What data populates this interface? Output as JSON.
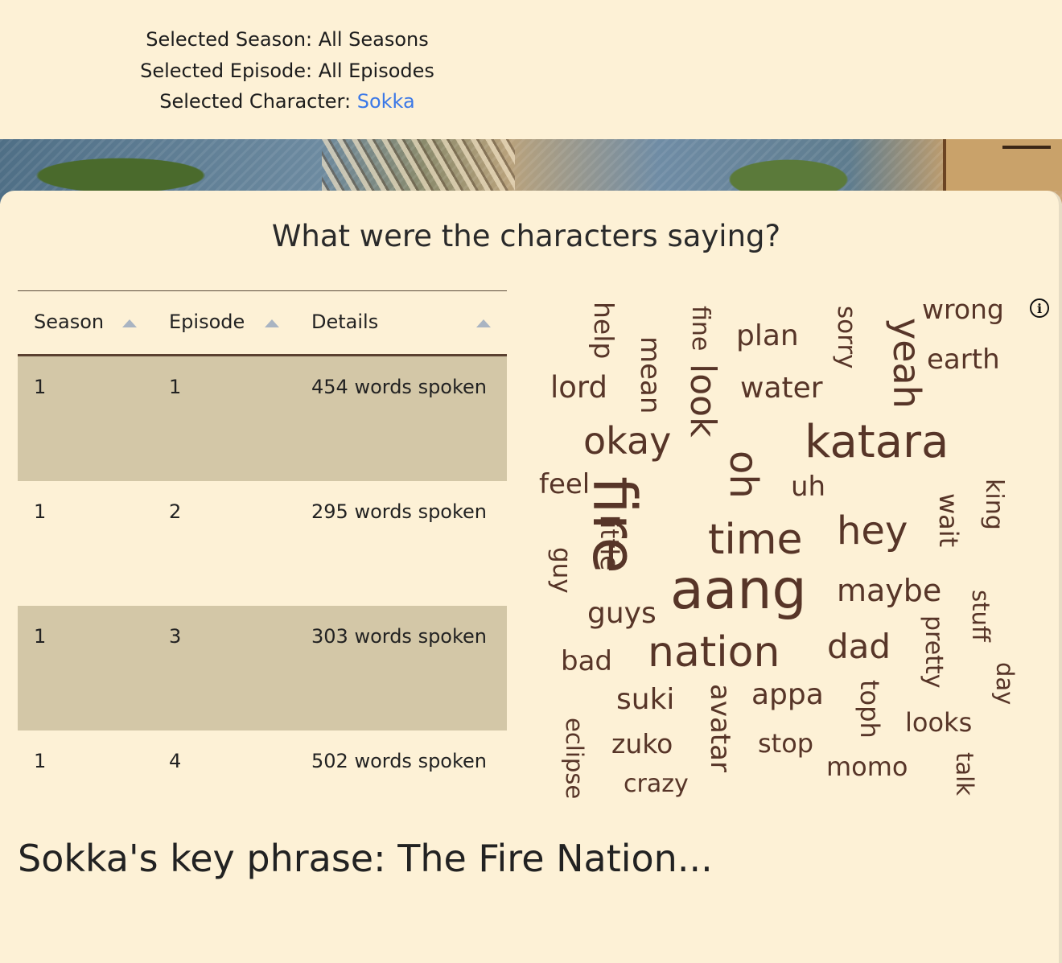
{
  "selection": {
    "season_label": "Selected Season: All Seasons",
    "episode_label": "Selected Episode: All Episodes",
    "character_prefix": "Selected Character: ",
    "character_value": "Sokka"
  },
  "section_title": "What were the characters saying?",
  "table": {
    "columns": [
      "Season",
      "Episode",
      "Details"
    ],
    "rows": [
      {
        "season": "1",
        "episode": "1",
        "details": "454 words spoken"
      },
      {
        "season": "1",
        "episode": "2",
        "details": "295 words spoken"
      },
      {
        "season": "1",
        "episode": "3",
        "details": "303 words spoken"
      },
      {
        "season": "1",
        "episode": "4",
        "details": "502 words spoken"
      }
    ]
  },
  "word_cloud": {
    "color": "#573528",
    "words": [
      "fire",
      "aang",
      "katara",
      "nation",
      "time",
      "oh",
      "look",
      "yeah",
      "hey",
      "okay",
      "lord",
      "water",
      "plan",
      "earth",
      "wrong",
      "sorry",
      "fine",
      "mean",
      "help",
      "feel",
      "uh",
      "wait",
      "king",
      "little",
      "guy",
      "guys",
      "maybe",
      "dad",
      "stuff",
      "pretty",
      "day",
      "bad",
      "suki",
      "avatar",
      "appa",
      "toph",
      "looks",
      "zuko",
      "stop",
      "momo",
      "talk",
      "eclipse",
      "crazy"
    ]
  },
  "info_icon": "info-circle-icon",
  "key_phrase": "Sokka's key phrase: The Fire Nation..."
}
